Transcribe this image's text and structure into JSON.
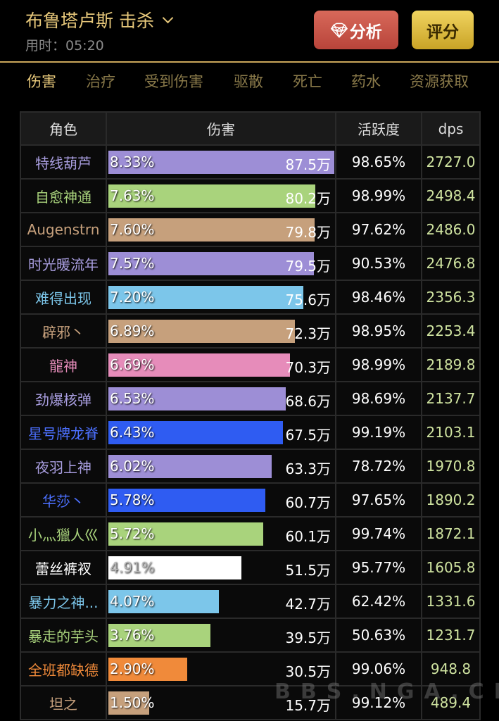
{
  "header": {
    "title": "布鲁塔卢斯 击杀",
    "time_label": "用时：05:20",
    "analyze_label": "分析",
    "score_label": "评分"
  },
  "tabs": [
    {
      "label": "伤害",
      "active": true
    },
    {
      "label": "治疗"
    },
    {
      "label": "受到伤害"
    },
    {
      "label": "驱散"
    },
    {
      "label": "死亡"
    },
    {
      "label": "药水"
    },
    {
      "label": "资源获取"
    }
  ],
  "table": {
    "columns": [
      "角色",
      "伤害",
      "活跃度",
      "dps"
    ],
    "rows": [
      {
        "name": "特线葫芦",
        "pct": "8.33%",
        "damage": "87.5万",
        "value": 87.5,
        "activity": "98.65%",
        "dps": "2727.0",
        "color": "#9d8ed6",
        "text_color": "#a99ee0"
      },
      {
        "name": "自愈神通",
        "pct": "7.63%",
        "damage": "80.2万",
        "value": 80.2,
        "activity": "98.99%",
        "dps": "2498.4",
        "color": "#a9d37c",
        "text_color": "#a9d37c"
      },
      {
        "name": "Augenstrn",
        "pct": "7.60%",
        "damage": "79.8万",
        "value": 79.8,
        "activity": "97.62%",
        "dps": "2486.0",
        "color": "#c6a07c",
        "text_color": "#c6a07c"
      },
      {
        "name": "时光暖流年",
        "pct": "7.57%",
        "damage": "79.5万",
        "value": 79.5,
        "activity": "90.53%",
        "dps": "2476.8",
        "color": "#9d8ed6",
        "text_color": "#a99ee0"
      },
      {
        "name": "难得出现",
        "pct": "7.20%",
        "damage": "75.6万",
        "value": 75.6,
        "activity": "98.46%",
        "dps": "2356.3",
        "color": "#7cc6ea",
        "text_color": "#7cc6ea"
      },
      {
        "name": "辟邪丶",
        "pct": "6.89%",
        "damage": "72.3万",
        "value": 72.3,
        "activity": "98.95%",
        "dps": "2253.4",
        "color": "#c6a07c",
        "text_color": "#c6a07c"
      },
      {
        "name": "龍神",
        "pct": "6.69%",
        "damage": "70.3万",
        "value": 70.3,
        "activity": "98.99%",
        "dps": "2189.8",
        "color": "#e68cba",
        "text_color": "#e68cba"
      },
      {
        "name": "劲爆核弹",
        "pct": "6.53%",
        "damage": "68.6万",
        "value": 68.6,
        "activity": "98.69%",
        "dps": "2137.7",
        "color": "#9d8ed6",
        "text_color": "#a99ee0"
      },
      {
        "name": "星号牌龙脊",
        "pct": "6.43%",
        "damage": "67.5万",
        "value": 67.5,
        "activity": "99.19%",
        "dps": "2103.1",
        "color": "#2f5cf2",
        "text_color": "#4c70ff"
      },
      {
        "name": "夜羽上神",
        "pct": "6.02%",
        "damage": "63.3万",
        "value": 63.3,
        "activity": "78.72%",
        "dps": "1970.8",
        "color": "#9d8ed6",
        "text_color": "#a99ee0"
      },
      {
        "name": "华莎丶",
        "pct": "5.78%",
        "damage": "60.7万",
        "value": 60.7,
        "activity": "97.65%",
        "dps": "1890.2",
        "color": "#2f5cf2",
        "text_color": "#4c70ff"
      },
      {
        "name": "小灬獵人巛",
        "pct": "5.72%",
        "damage": "60.1万",
        "value": 60.1,
        "activity": "99.74%",
        "dps": "1872.1",
        "color": "#a9d37c",
        "text_color": "#a9d37c"
      },
      {
        "name": "蕾丝裤衩",
        "pct": "4.91%",
        "damage": "51.5万",
        "value": 51.5,
        "activity": "95.77%",
        "dps": "1605.8",
        "color": "#ffffff",
        "text_color": "#ffffff"
      },
      {
        "name": "暴力之神...",
        "pct": "4.07%",
        "damage": "42.7万",
        "value": 42.7,
        "activity": "62.42%",
        "dps": "1331.6",
        "color": "#7cc6ea",
        "text_color": "#7cc6ea"
      },
      {
        "name": "暴走的芋头",
        "pct": "3.76%",
        "damage": "39.5万",
        "value": 39.5,
        "activity": "50.63%",
        "dps": "1231.7",
        "color": "#a9d37c",
        "text_color": "#a9d37c"
      },
      {
        "name": "全班都缺德",
        "pct": "2.90%",
        "damage": "30.5万",
        "value": 30.5,
        "activity": "99.06%",
        "dps": "948.8",
        "color": "#f08a3a",
        "text_color": "#f08a3a"
      },
      {
        "name": "坦之",
        "pct": "1.50%",
        "damage": "15.7万",
        "value": 15.7,
        "activity": "99.12%",
        "dps": "489.4",
        "color": "#c6a07c",
        "text_color": "#c6a07c"
      }
    ]
  },
  "watermark": "BBS.NGA.CN"
}
